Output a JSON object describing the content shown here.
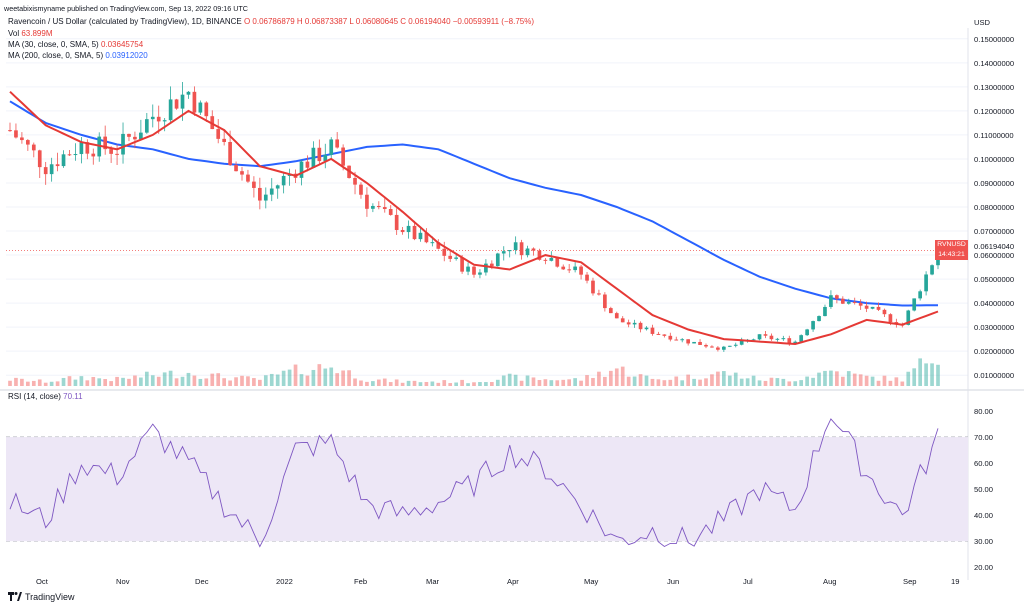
{
  "header": {
    "publisher": "weetabixismyname published on TradingView.com, Sep 13, 2022 09:16 UTC",
    "symbol_line": "Ravencoin / US Dollar (calculated by TradingView), 1D, BINANCE",
    "ohlc": "O 0.06786879 H 0.06873387 L 0.06080645 C 0.06194040 −0.00593911 (−8.75%)",
    "vol_label": "Vol",
    "vol_value": "63.899M",
    "ma30_label": "MA (30, close, 0, SMA, 5)",
    "ma30_value": "0.03645754",
    "ma200_label": "MA (200, close, 0, SMA, 5)",
    "ma200_value": "0.03912020"
  },
  "axis": {
    "currency": "USD",
    "price_ticks": [
      "0.15000000",
      "0.14000000",
      "0.13000000",
      "0.12000000",
      "0.11000000",
      "0.10000000",
      "0.09000000",
      "0.08000000",
      "0.07000000",
      "0.06000000",
      "0.05000000",
      "0.04000000",
      "0.03000000",
      "0.02000000",
      "0.01000000"
    ],
    "rsi_ticks": [
      "80.00",
      "70.00",
      "60.00",
      "50.00",
      "40.00",
      "30.00",
      "20.00"
    ],
    "x_labels": [
      "Oct",
      "Nov",
      "Dec",
      "2022",
      "Feb",
      "Mar",
      "Apr",
      "May",
      "Jun",
      "Jul",
      "Aug",
      "Sep",
      "19"
    ]
  },
  "price_tag": {
    "symbol": "RVNUSD",
    "value": "0.06194040",
    "countdown": "14:43:21"
  },
  "rsi": {
    "label": "RSI (14, close)",
    "value": "70.11"
  },
  "footer": {
    "brand": "TradingView"
  },
  "colors": {
    "up": "#26a69a",
    "down": "#ef5350",
    "ma30": "#e53935",
    "ma200": "#2962ff",
    "rsi_line": "#7e57c2",
    "rsi_band": "#ede7f6"
  },
  "chart_data": {
    "type": "line",
    "title": "Ravencoin / US Dollar (calculated by TradingView), 1D, BINANCE",
    "xlabel": "",
    "ylabel": "USD",
    "ylim": [
      0.005,
      0.152
    ],
    "x": [
      "Sep 13 2021",
      "Sep 27",
      "Oct 11",
      "Oct 25",
      "Nov 8",
      "Nov 22",
      "Dec 6",
      "Dec 20",
      "Jan 3 2022",
      "Jan 17",
      "Jan 31",
      "Feb 14",
      "Feb 28",
      "Mar 14",
      "Mar 28",
      "Apr 11",
      "Apr 25",
      "May 9",
      "May 23",
      "Jun 6",
      "Jun 20",
      "Jul 4",
      "Jul 18",
      "Aug 1",
      "Aug 15",
      "Aug 29",
      "Sep 13"
    ],
    "series": [
      {
        "name": "Close",
        "values": [
          0.112,
          0.097,
          0.106,
          0.104,
          0.118,
          0.128,
          0.105,
          0.083,
          0.096,
          0.105,
          0.082,
          0.071,
          0.062,
          0.052,
          0.064,
          0.06,
          0.052,
          0.033,
          0.028,
          0.024,
          0.021,
          0.026,
          0.024,
          0.042,
          0.038,
          0.031,
          0.062
        ]
      },
      {
        "name": "MA (30, close, 0, SMA, 5)",
        "values": [
          0.128,
          0.114,
          0.107,
          0.104,
          0.11,
          0.12,
          0.112,
          0.097,
          0.093,
          0.1,
          0.09,
          0.078,
          0.065,
          0.056,
          0.054,
          0.06,
          0.057,
          0.046,
          0.035,
          0.029,
          0.025,
          0.024,
          0.023,
          0.027,
          0.033,
          0.031,
          0.0365
        ]
      },
      {
        "name": "MA (200, close, 0, SMA, 5)",
        "values": [
          0.124,
          0.115,
          0.11,
          0.106,
          0.104,
          0.1,
          0.098,
          0.097,
          0.099,
          0.102,
          0.105,
          0.106,
          0.104,
          0.098,
          0.092,
          0.088,
          0.085,
          0.08,
          0.074,
          0.066,
          0.058,
          0.051,
          0.046,
          0.042,
          0.04,
          0.039,
          0.0391
        ]
      }
    ],
    "rsi": {
      "name": "RSI (14, close)",
      "ylim": [
        20,
        80
      ],
      "values": [
        45,
        38,
        60,
        55,
        72,
        60,
        44,
        30,
        65,
        68,
        44,
        40,
        45,
        52,
        64,
        58,
        44,
        30,
        34,
        30,
        38,
        50,
        42,
        80,
        56,
        40,
        70
      ]
    },
    "volume": {
      "name": "Vol",
      "values": [
        3,
        2,
        4,
        3,
        5,
        6,
        4,
        3,
        7,
        9,
        3,
        2,
        2,
        2,
        4,
        3,
        3,
        8,
        3,
        4,
        6,
        3,
        3,
        7,
        4,
        3,
        16
      ]
    }
  }
}
